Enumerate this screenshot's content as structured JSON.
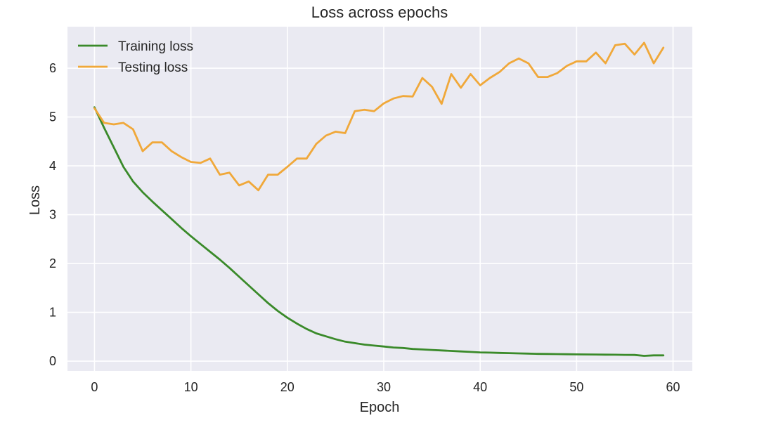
{
  "chart_data": {
    "type": "line",
    "title": "Loss across epochs",
    "xlabel": "Epoch",
    "ylabel": "Loss",
    "xlim": [
      -2.8,
      62
    ],
    "ylim": [
      -0.2,
      6.85
    ],
    "xticks": [
      0,
      10,
      20,
      30,
      40,
      50,
      60
    ],
    "yticks": [
      0,
      1,
      2,
      3,
      4,
      5,
      6
    ],
    "grid": true,
    "legend_position": "top-left",
    "background": "#eaeaf2",
    "x": [
      0,
      1,
      2,
      3,
      4,
      5,
      6,
      7,
      8,
      9,
      10,
      11,
      12,
      13,
      14,
      15,
      16,
      17,
      18,
      19,
      20,
      21,
      22,
      23,
      24,
      25,
      26,
      27,
      28,
      29,
      30,
      31,
      32,
      33,
      34,
      35,
      36,
      37,
      38,
      39,
      40,
      41,
      42,
      43,
      44,
      45,
      46,
      47,
      48,
      49,
      50,
      51,
      52,
      53,
      54,
      55,
      56,
      57,
      58,
      59
    ],
    "series": [
      {
        "name": "Training loss",
        "color": "#3a8a2a",
        "values": [
          5.2,
          4.78,
          4.38,
          3.98,
          3.68,
          3.46,
          3.27,
          3.09,
          2.91,
          2.73,
          2.56,
          2.4,
          2.24,
          2.08,
          1.91,
          1.73,
          1.55,
          1.37,
          1.19,
          1.03,
          0.89,
          0.77,
          0.66,
          0.57,
          0.51,
          0.45,
          0.4,
          0.37,
          0.34,
          0.32,
          0.3,
          0.28,
          0.27,
          0.25,
          0.24,
          0.23,
          0.22,
          0.21,
          0.2,
          0.19,
          0.18,
          0.175,
          0.17,
          0.165,
          0.16,
          0.155,
          0.15,
          0.148,
          0.145,
          0.142,
          0.14,
          0.138,
          0.136,
          0.134,
          0.132,
          0.13,
          0.128,
          0.11,
          0.12,
          0.12
        ]
      },
      {
        "name": "Testing loss",
        "color": "#f0a83a",
        "values": [
          5.18,
          4.88,
          4.85,
          4.88,
          4.75,
          4.3,
          4.48,
          4.48,
          4.3,
          4.18,
          4.08,
          4.06,
          4.15,
          3.82,
          3.86,
          3.6,
          3.68,
          3.5,
          3.82,
          3.82,
          3.98,
          4.15,
          4.15,
          4.45,
          4.62,
          4.7,
          4.67,
          5.12,
          5.15,
          5.12,
          5.28,
          5.38,
          5.43,
          5.42,
          5.8,
          5.62,
          5.27,
          5.88,
          5.6,
          5.88,
          5.65,
          5.8,
          5.92,
          6.1,
          6.2,
          6.1,
          5.82,
          5.82,
          5.9,
          6.05,
          6.14,
          6.14,
          6.32,
          6.1,
          6.47,
          6.5,
          6.28,
          6.52,
          6.1,
          6.42
        ]
      }
    ]
  }
}
